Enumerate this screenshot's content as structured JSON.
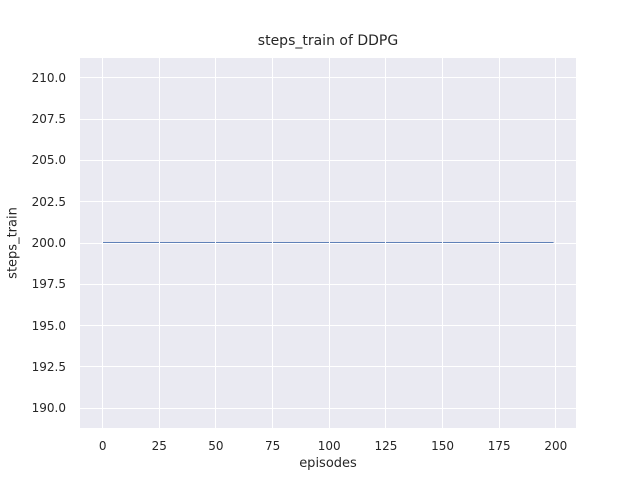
{
  "chart_data": {
    "type": "line",
    "title": "steps_train of DDPG",
    "xlabel": "episodes",
    "ylabel": "steps_train",
    "x_ticks": [
      0,
      25,
      50,
      75,
      100,
      125,
      150,
      175,
      200
    ],
    "x_tick_labels": [
      "0",
      "25",
      "50",
      "75",
      "100",
      "125",
      "150",
      "175",
      "200"
    ],
    "y_ticks": [
      190.0,
      192.5,
      195.0,
      197.5,
      200.0,
      202.5,
      205.0,
      207.5,
      210.0
    ],
    "y_tick_labels": [
      "190.0",
      "192.5",
      "195.0",
      "197.5",
      "200.0",
      "202.5",
      "205.0",
      "207.5",
      "210.0"
    ],
    "xlim": [
      -10.0,
      208.9
    ],
    "ylim": [
      188.8,
      211.2
    ],
    "grid": true,
    "legend_position": "none",
    "style": {
      "axes_background": "#EAEAF2",
      "grid_color": "#FFFFFF",
      "figure_background": "#FFFFFF",
      "text_color": "#262626",
      "line_width": 1.8
    },
    "series": [
      {
        "name": "steps_train",
        "color": "#4C72B0",
        "x": [
          0,
          199
        ],
        "y": [
          200,
          200
        ]
      }
    ]
  }
}
